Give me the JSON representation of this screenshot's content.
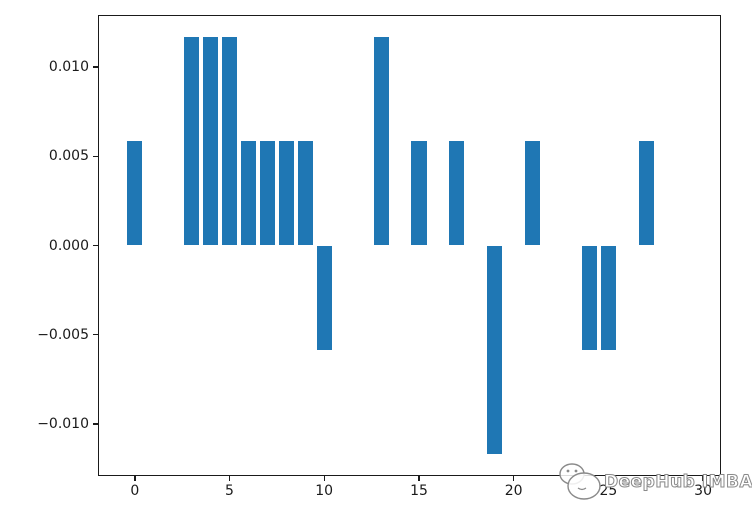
{
  "figure": {
    "background": "#ffffff"
  },
  "watermark": {
    "text": "DeepHub IMBA"
  },
  "chart_data": {
    "type": "bar",
    "title": "",
    "xlabel": "",
    "ylabel": "",
    "bar_color": "#1f77b4",
    "axis_color": "#1a1a1a",
    "bar_width": 0.8,
    "grid": false,
    "legend": false,
    "x": [
      0,
      1,
      2,
      3,
      4,
      5,
      6,
      7,
      8,
      9,
      10,
      11,
      12,
      13,
      14,
      15,
      16,
      17,
      18,
      19,
      20,
      21,
      22,
      23,
      24,
      25,
      26,
      27,
      28,
      29
    ],
    "values": [
      0.00585,
      0,
      0,
      0.0117,
      0.0117,
      0.0117,
      0.00585,
      0.00585,
      0.00585,
      0.00585,
      -0.00585,
      0,
      0,
      0.0117,
      0,
      0.00585,
      0,
      0.00585,
      0,
      -0.0117,
      0,
      0.00585,
      0,
      0,
      -0.00585,
      -0.00585,
      0,
      0.00585,
      0,
      0
    ],
    "xlim": [
      -1.89,
      30.89
    ],
    "ylim": [
      -0.01287,
      0.01287
    ],
    "xticks": [
      0,
      5,
      10,
      15,
      20,
      25,
      30
    ],
    "xtick_labels": [
      "0",
      "5",
      "10",
      "15",
      "20",
      "25",
      "30"
    ],
    "yticks": [
      0.01,
      0.005,
      0.0,
      -0.005,
      -0.01
    ],
    "ytick_labels": [
      "0.010",
      "0.005",
      "0.000",
      "−0.005",
      "−0.010"
    ]
  }
}
